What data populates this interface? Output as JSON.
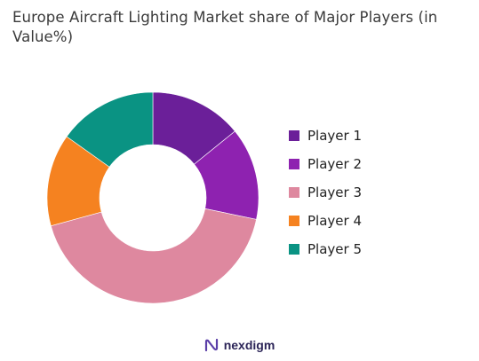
{
  "chart_data": {
    "type": "pie",
    "title": "Europe Aircraft Lighting Market share of Major Players (in Value%)",
    "donut": true,
    "categories": [
      "Player 1",
      "Player 2",
      "Player 3",
      "Player 4",
      "Player 5"
    ],
    "values": [
      14,
      14,
      42,
      14,
      15
    ],
    "colors": [
      "#6b1f99",
      "#8e22b0",
      "#de889f",
      "#f58220",
      "#0a9383"
    ],
    "legend_position": "right"
  },
  "brand": {
    "name": "nexdigm",
    "icon": "nexdigm-logo-icon"
  }
}
